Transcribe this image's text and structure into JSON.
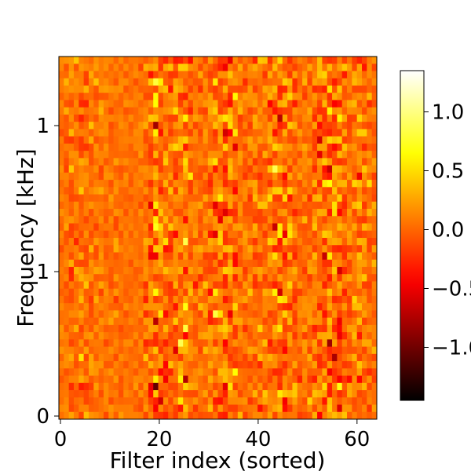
{
  "chart_data": {
    "type": "heatmap",
    "title": "",
    "xlabel": "Filter index (sorted)",
    "ylabel": "Frequency [kHz]",
    "colormap": "hot",
    "n_cols": 64,
    "n_rows": 50,
    "x_range": [
      0,
      64
    ],
    "value_range": [
      -1.45,
      1.35
    ],
    "x_ticks": [
      {
        "value": 0,
        "label": "0"
      },
      {
        "value": 20,
        "label": "20"
      },
      {
        "value": 40,
        "label": "40"
      },
      {
        "value": 60,
        "label": "60"
      }
    ],
    "y_tick_labels": [
      "0",
      "1",
      "1"
    ],
    "colorbar_ticks": [
      {
        "value": 1.0,
        "label": "1.0"
      },
      {
        "value": 0.5,
        "label": "0.5"
      },
      {
        "value": 0.0,
        "label": "0.0"
      },
      {
        "value": -0.5,
        "label": "−0.5"
      },
      {
        "value": -1.0,
        "label": "−1.0"
      }
    ],
    "column_variability": [
      0.25,
      0.35,
      0.45,
      0.4,
      0.55,
      0.5,
      0.45,
      0.4,
      0.35,
      0.3,
      0.3,
      0.3,
      0.25,
      0.2,
      0.2,
      0.2,
      0.3,
      0.45,
      0.8,
      1.1,
      0.9,
      0.6,
      0.55,
      0.7,
      0.9,
      0.95,
      0.5,
      0.4,
      0.4,
      0.5,
      0.6,
      0.8,
      0.95,
      1.0,
      0.85,
      0.7,
      0.5,
      0.45,
      0.5,
      0.6,
      0.5,
      0.45,
      0.7,
      0.8,
      0.9,
      0.85,
      0.6,
      0.5,
      0.45,
      0.4,
      0.45,
      0.55,
      0.75,
      0.95,
      1.05,
      1.0,
      0.8,
      0.55,
      0.5,
      0.6,
      0.7,
      0.55,
      0.5,
      0.4
    ]
  }
}
